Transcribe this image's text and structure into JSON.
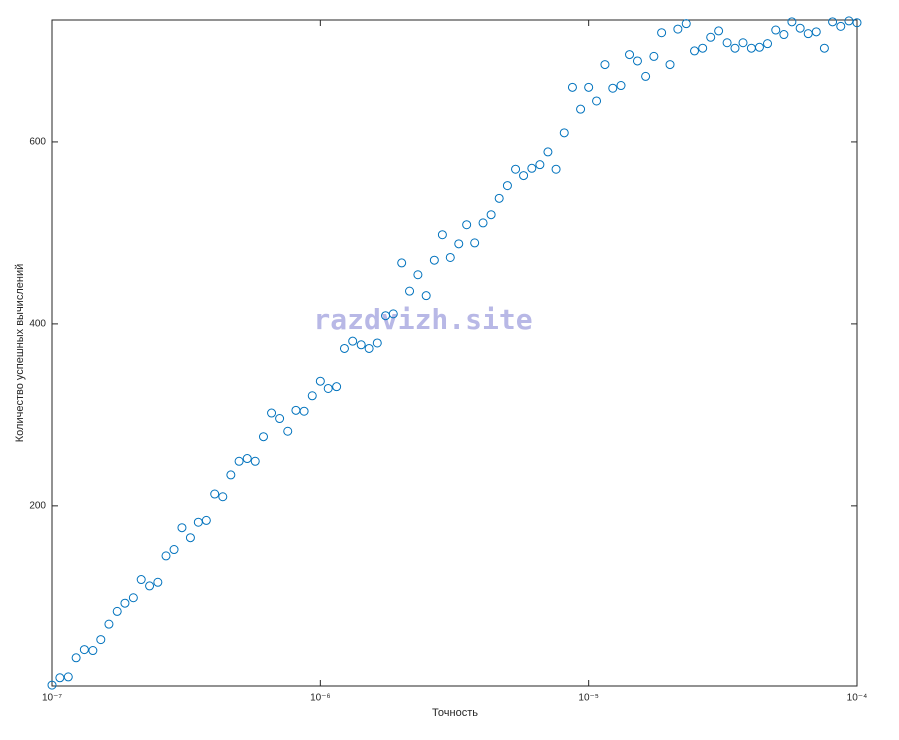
{
  "chart_data": {
    "type": "scatter",
    "xlabel": "Точность",
    "ylabel": "Количество успешных вычислений",
    "watermark": "razdvizh.site",
    "xscale": "log",
    "color": "#0072bd",
    "xlim": [
      1e-07,
      0.0001
    ],
    "ylim": [
      2,
      734
    ],
    "xticks": [
      {
        "value": 1e-07,
        "label": "10⁻⁷"
      },
      {
        "value": 1e-06,
        "label": "10⁻⁶"
      },
      {
        "value": 1e-05,
        "label": "10⁻⁵"
      },
      {
        "value": 0.0001,
        "label": "10⁻⁴"
      }
    ],
    "yticks": [
      200,
      400,
      600
    ],
    "grid": false,
    "x": [
      1e-07,
      1.07e-07,
      1.15e-07,
      1.23e-07,
      1.32e-07,
      1.42e-07,
      1.52e-07,
      1.63e-07,
      1.75e-07,
      1.87e-07,
      2.01e-07,
      2.15e-07,
      2.31e-07,
      2.48e-07,
      2.66e-07,
      2.85e-07,
      3.05e-07,
      3.28e-07,
      3.51e-07,
      3.76e-07,
      4.04e-07,
      4.33e-07,
      4.64e-07,
      4.98e-07,
      5.34e-07,
      5.72e-07,
      6.14e-07,
      6.58e-07,
      7.05e-07,
      7.56e-07,
      8.11e-07,
      8.7e-07,
      9.33e-07,
      1e-06,
      1.07e-06,
      1.15e-06,
      1.23e-06,
      1.32e-06,
      1.42e-06,
      1.52e-06,
      1.63e-06,
      1.75e-06,
      1.87e-06,
      2.01e-06,
      2.15e-06,
      2.31e-06,
      2.48e-06,
      2.66e-06,
      2.85e-06,
      3.05e-06,
      3.28e-06,
      3.51e-06,
      3.76e-06,
      4.04e-06,
      4.33e-06,
      4.64e-06,
      4.98e-06,
      5.34e-06,
      5.72e-06,
      6.14e-06,
      6.58e-06,
      7.05e-06,
      7.56e-06,
      8.11e-06,
      8.7e-06,
      9.33e-06,
      1e-05,
      1.07e-05,
      1.15e-05,
      1.23e-05,
      1.32e-05,
      1.42e-05,
      1.52e-05,
      1.63e-05,
      1.75e-05,
      1.87e-05,
      2.01e-05,
      2.15e-05,
      2.31e-05,
      2.48e-05,
      2.66e-05,
      2.85e-05,
      3.05e-05,
      3.28e-05,
      3.51e-05,
      3.76e-05,
      4.04e-05,
      4.33e-05,
      4.64e-05,
      4.98e-05,
      5.34e-05,
      5.72e-05,
      6.14e-05,
      6.58e-05,
      7.05e-05,
      7.56e-05,
      8.11e-05,
      8.7e-05,
      9.33e-05,
      0.0001
    ],
    "values": [
      3,
      11,
      12,
      33,
      42,
      41,
      53,
      70,
      84,
      93,
      99,
      119,
      112,
      116,
      145,
      152,
      176,
      165,
      182,
      184,
      213,
      210,
      234,
      249,
      252,
      249,
      276,
      302,
      296,
      282,
      305,
      304,
      321,
      337,
      329,
      331,
      373,
      381,
      377,
      373,
      379,
      409,
      411,
      467,
      436,
      454,
      431,
      470,
      498,
      473,
      488,
      509,
      489,
      511,
      520,
      538,
      552,
      570,
      563,
      571,
      575,
      589,
      570,
      610,
      660,
      636,
      660,
      645,
      685,
      659,
      662,
      696,
      689,
      672,
      694,
      720,
      685,
      724,
      730,
      700,
      703,
      715,
      722,
      709,
      703,
      709,
      703,
      704,
      708,
      723,
      718,
      732,
      725,
      719,
      721,
      703,
      732,
      727,
      733,
      731
    ]
  }
}
